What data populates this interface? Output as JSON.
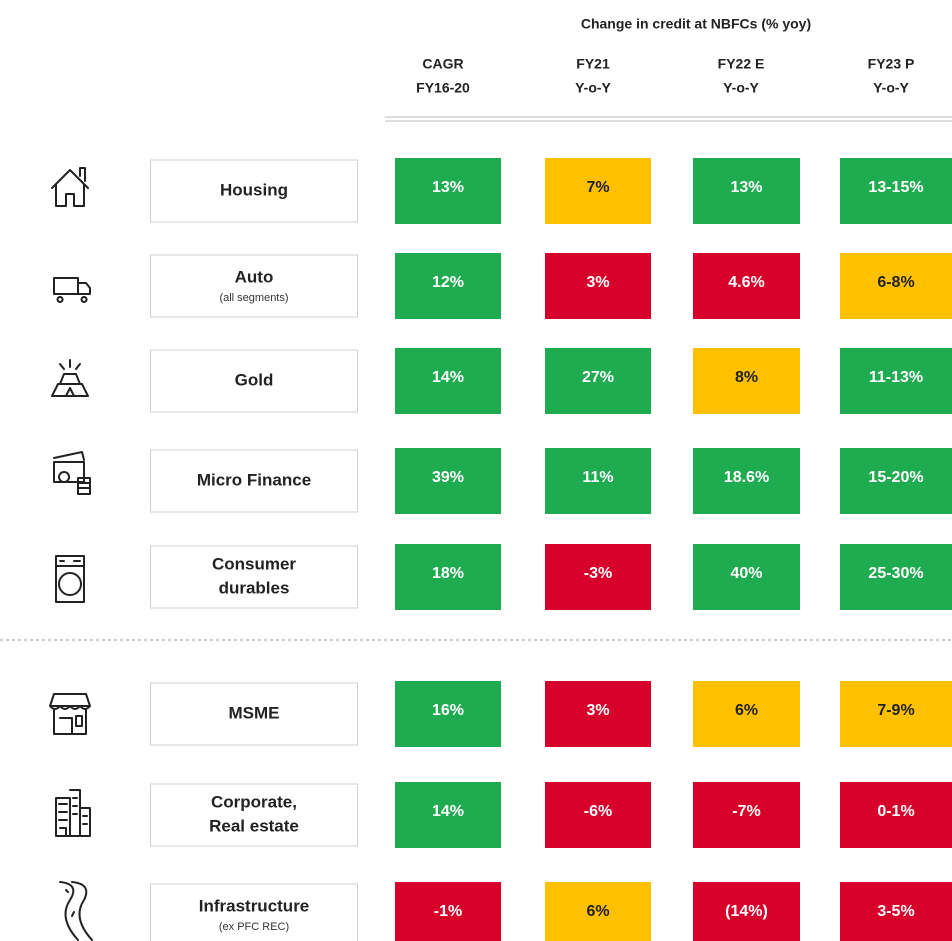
{
  "header": {
    "title": "Change in credit at NBFCs (% yoy)",
    "columns": [
      [
        "CAGR",
        "FY16-20"
      ],
      [
        "FY21",
        "Y-o-Y"
      ],
      [
        "FY22 E",
        "Y-o-Y"
      ],
      [
        "FY23 P",
        "Y-o-Y"
      ]
    ]
  },
  "colors": {
    "green": "#1fab4f",
    "yellow": "#ffc000",
    "red": "#d6002a"
  },
  "sections": [
    {
      "rows": [
        {
          "label": [
            "Housing"
          ],
          "cells": [
            {
              "text": "13%",
              "color": "green"
            },
            {
              "text": "7%",
              "color": "yellow"
            },
            {
              "text": "13%",
              "color": "green"
            },
            {
              "text": "13-15%",
              "color": "green"
            }
          ]
        },
        {
          "label": [
            "Auto"
          ],
          "sublabel": "(all segments)",
          "cells": [
            {
              "text": "12%",
              "color": "green"
            },
            {
              "text": "3%",
              "color": "red"
            },
            {
              "text": "4.6%",
              "color": "red"
            },
            {
              "text": "6-8%",
              "color": "yellow"
            }
          ]
        },
        {
          "label": [
            "Gold"
          ],
          "cells": [
            {
              "text": "14%",
              "color": "green"
            },
            {
              "text": "27%",
              "color": "green"
            },
            {
              "text": "8%",
              "color": "yellow"
            },
            {
              "text": "11-13%",
              "color": "green"
            }
          ]
        },
        {
          "label": [
            "Micro Finance"
          ],
          "cells": [
            {
              "text": "39%",
              "color": "green"
            },
            {
              "text": "11%",
              "color": "green"
            },
            {
              "text": "18.6%",
              "color": "green"
            },
            {
              "text": "15-20%",
              "color": "green"
            }
          ]
        },
        {
          "label": [
            "Consumer",
            "durables"
          ],
          "cells": [
            {
              "text": "18%",
              "color": "green"
            },
            {
              "text": "-3%",
              "color": "red"
            },
            {
              "text": "40%",
              "color": "green"
            },
            {
              "text": "25-30%",
              "color": "green"
            }
          ]
        }
      ]
    },
    {
      "rows": [
        {
          "label": [
            "MSME"
          ],
          "cells": [
            {
              "text": "16%",
              "color": "green"
            },
            {
              "text": "3%",
              "color": "red"
            },
            {
              "text": "6%",
              "color": "yellow"
            },
            {
              "text": "7-9%",
              "color": "yellow"
            }
          ]
        },
        {
          "label": [
            "Corporate,",
            "Real estate"
          ],
          "cells": [
            {
              "text": "14%",
              "color": "green"
            },
            {
              "text": "-6%",
              "color": "red"
            },
            {
              "text": "-7%",
              "color": "red"
            },
            {
              "text": "0-1%",
              "color": "red"
            }
          ]
        },
        {
          "label": [
            "Infrastructure"
          ],
          "sublabel": "(ex PFC REC)",
          "cells": [
            {
              "text": "-1%",
              "color": "red"
            },
            {
              "text": "6%",
              "color": "yellow"
            },
            {
              "text": "(14%)",
              "color": "red"
            },
            {
              "text": "3-5%",
              "color": "red"
            }
          ]
        }
      ]
    }
  ]
}
